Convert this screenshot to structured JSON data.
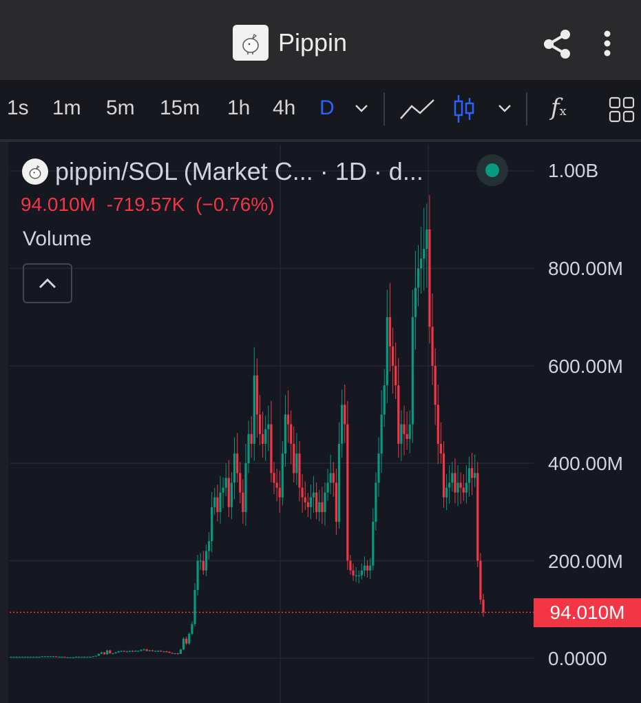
{
  "header": {
    "title": "Pippin",
    "logo_icon": "pippin-logo",
    "share_icon": "share-icon",
    "more_icon": "more-vertical-icon"
  },
  "toolbar": {
    "timeframes": [
      "1s",
      "1m",
      "5m",
      "15m",
      "1h",
      "4h",
      "D"
    ],
    "active_timeframe": "D",
    "icons": [
      "chevron-down-icon",
      "line-chart-icon",
      "candles-icon",
      "chevron-down-icon",
      "indicators-icon",
      "layout-icon"
    ],
    "indicators_glyph": "f",
    "indicators_sub": "x"
  },
  "legend": {
    "symbol": "pippin/SOL (Market C... · 1D · d...",
    "value": "94.010M",
    "change": "-719.57K",
    "change_pct": "(−0.76%)",
    "volume_label": "Volume",
    "status": "live"
  },
  "colors": {
    "up": "#089981",
    "down": "#f23645",
    "active": "#2962ff",
    "background": "#151820"
  },
  "chart_data": {
    "type": "candlestick",
    "y_axis_labels": [
      "1.00B",
      "800.00M",
      "600.00M",
      "400.00M",
      "200.00M",
      "0.0000"
    ],
    "ylim": [
      0,
      1000000000
    ],
    "last_price_label": "94.010M",
    "last_price": 94010000,
    "grid": true,
    "closes_M": [
      3,
      3,
      3,
      3,
      3,
      3,
      3,
      3,
      3,
      3,
      3,
      4,
      4,
      4,
      4,
      4,
      3,
      3,
      3,
      2,
      2,
      2,
      2,
      3,
      3,
      3,
      3,
      3,
      3,
      4,
      5,
      9,
      12,
      8,
      16,
      10,
      10,
      12,
      14,
      15,
      14,
      14,
      15,
      14,
      15,
      15,
      17,
      18,
      15,
      16,
      15,
      15,
      15,
      14,
      14,
      13,
      11,
      10,
      10,
      9,
      18,
      40,
      30,
      50,
      70,
      140,
      200,
      200,
      180,
      220,
      240,
      310,
      330,
      300,
      340,
      350,
      370,
      310,
      360,
      420,
      380,
      340,
      300,
      400,
      460,
      440,
      580,
      500,
      460,
      440,
      470,
      480,
      380,
      360,
      350,
      330,
      420,
      500,
      480,
      440,
      380,
      420,
      350,
      330,
      320,
      310,
      330,
      340,
      300,
      320,
      300,
      340,
      360,
      380,
      360,
      280,
      440,
      520,
      480,
      200,
      180,
      170,
      170,
      170,
      180,
      190,
      180,
      190,
      280,
      360,
      420,
      500,
      560,
      700,
      640,
      600,
      560,
      440,
      480,
      460,
      450,
      480,
      700,
      760,
      800,
      820,
      840,
      880,
      680,
      600,
      520,
      440,
      420,
      330,
      350,
      360,
      380,
      340,
      360,
      350,
      340,
      360,
      390,
      370,
      380,
      200,
      120,
      94
    ]
  }
}
